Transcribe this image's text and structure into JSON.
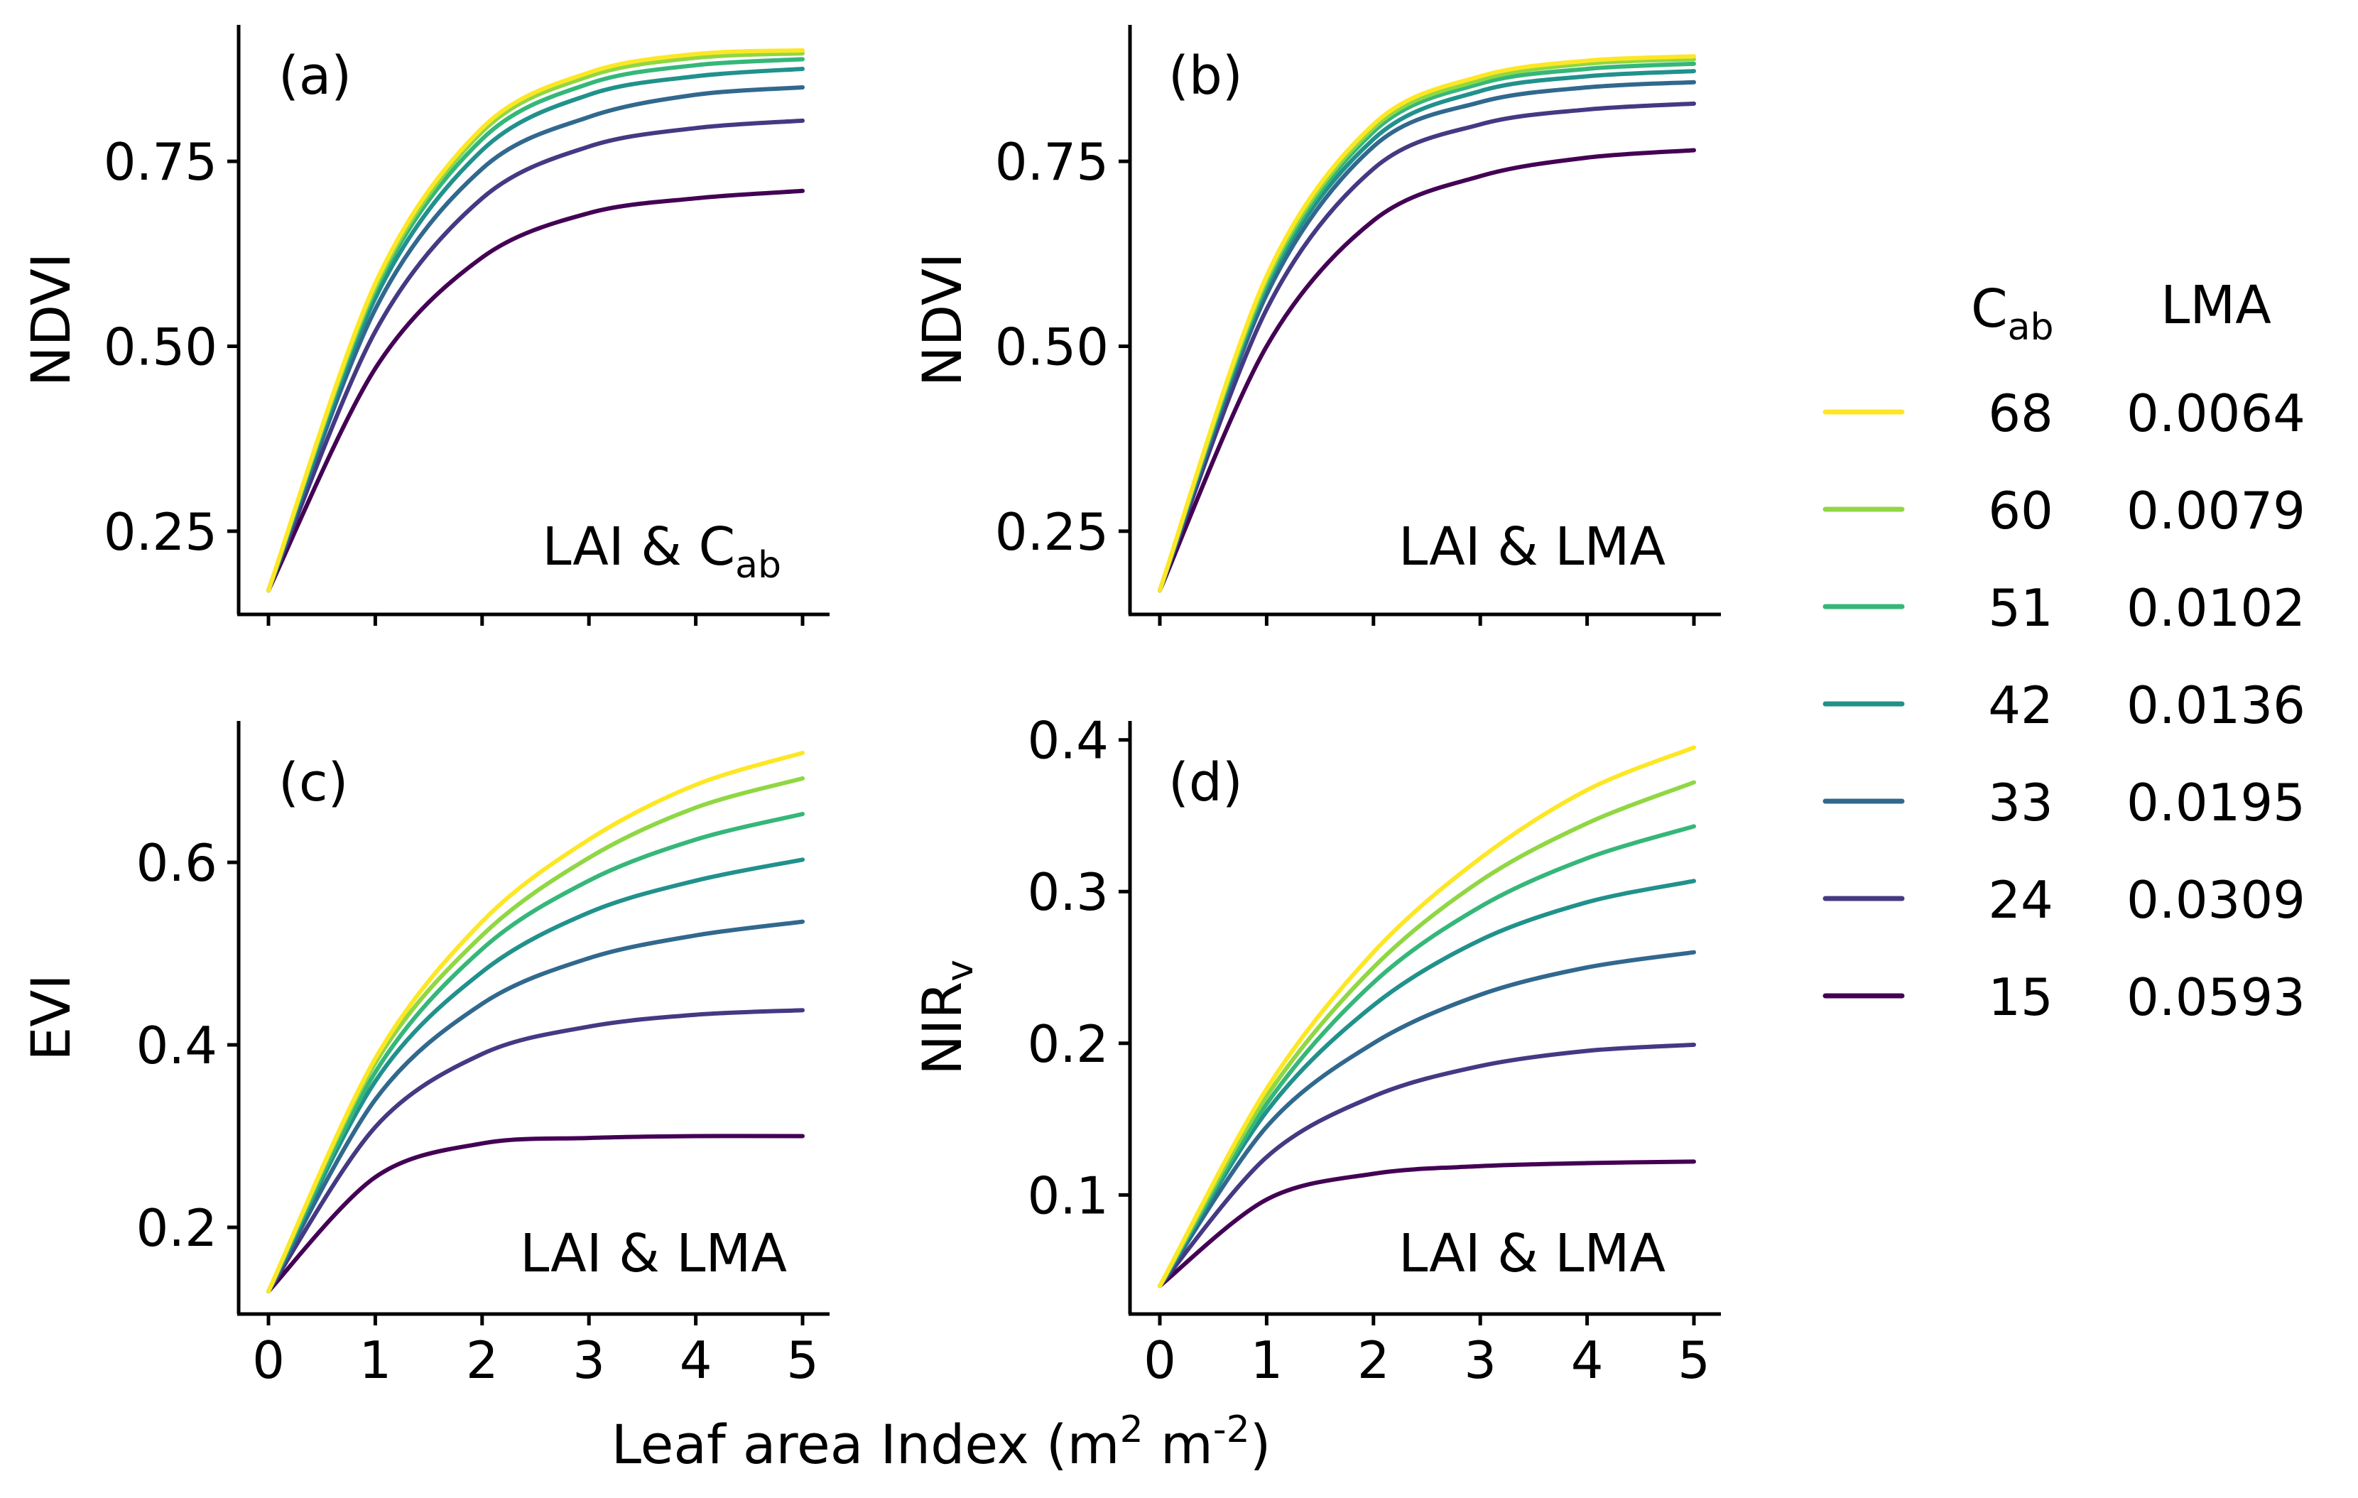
{
  "figure": {
    "xlabel_main": "Leaf area Index (m",
    "xlabel_sup1": "2",
    "xlabel_mid": " m",
    "xlabel_sup2": "-2",
    "xlabel_end": ")"
  },
  "legend": {
    "col1_main": "C",
    "col1_sub": "ab",
    "col2": "LMA"
  },
  "chart_data": [
    {
      "type": "line",
      "panel": "(a)",
      "annotation": "LAI & C",
      "annotation_sub": "ab",
      "ylabel": "NDVI",
      "ylabel_sub": "",
      "xlim": [
        0,
        5
      ],
      "ylim": [
        0.1375,
        0.9345
      ],
      "yticks": [
        0.25,
        0.5,
        0.75
      ],
      "ytick_labels": [
        "0.25",
        "0.50",
        "0.75"
      ],
      "xticks": [
        0,
        1,
        2,
        3,
        4,
        5
      ],
      "xtick_labels": [],
      "series": [
        {
          "name": "15",
          "lma": "0.0593",
          "color": "#440154",
          "x": [
            0,
            1,
            2,
            3,
            4,
            5
          ],
          "y": [
            0.17,
            0.47,
            0.62,
            0.68,
            0.7,
            0.71
          ]
        },
        {
          "name": "24",
          "lma": "0.0309",
          "color": "#443983",
          "x": [
            0,
            1,
            2,
            3,
            4,
            5
          ],
          "y": [
            0.17,
            0.52,
            0.7,
            0.77,
            0.795,
            0.805
          ]
        },
        {
          "name": "33",
          "lma": "0.0195",
          "color": "#31688e",
          "x": [
            0,
            1,
            2,
            3,
            4,
            5
          ],
          "y": [
            0.17,
            0.55,
            0.74,
            0.81,
            0.84,
            0.85
          ]
        },
        {
          "name": "42",
          "lma": "0.0136",
          "color": "#21918c",
          "x": [
            0,
            1,
            2,
            3,
            4,
            5
          ],
          "y": [
            0.17,
            0.565,
            0.765,
            0.84,
            0.865,
            0.875
          ]
        },
        {
          "name": "51",
          "lma": "0.0102",
          "color": "#35b779",
          "x": [
            0,
            1,
            2,
            3,
            4,
            5
          ],
          "y": [
            0.17,
            0.575,
            0.78,
            0.855,
            0.88,
            0.888
          ]
        },
        {
          "name": "60",
          "lma": "0.0079",
          "color": "#90d743",
          "x": [
            0,
            1,
            2,
            3,
            4,
            5
          ],
          "y": [
            0.17,
            0.58,
            0.79,
            0.865,
            0.89,
            0.896
          ]
        },
        {
          "name": "68",
          "lma": "0.0064",
          "color": "#fde725",
          "x": [
            0,
            1,
            2,
            3,
            4,
            5
          ],
          "y": [
            0.17,
            0.585,
            0.795,
            0.87,
            0.895,
            0.9
          ]
        }
      ]
    },
    {
      "type": "line",
      "panel": "(b)",
      "annotation": "LAI & LMA",
      "annotation_sub": "",
      "ylabel": "NDVI",
      "ylabel_sub": "",
      "xlim": [
        0,
        5
      ],
      "ylim": [
        0.1375,
        0.9345
      ],
      "yticks": [
        0.25,
        0.5,
        0.75
      ],
      "ytick_labels": [
        "0.25",
        "0.50",
        "0.75"
      ],
      "xticks": [
        0,
        1,
        2,
        3,
        4,
        5
      ],
      "xtick_labels": [],
      "series": [
        {
          "name": "15",
          "lma": "0.0593",
          "color": "#440154",
          "x": [
            0,
            1,
            2,
            3,
            4,
            5
          ],
          "y": [
            0.17,
            0.5,
            0.67,
            0.73,
            0.755,
            0.765
          ]
        },
        {
          "name": "24",
          "lma": "0.0309",
          "color": "#443983",
          "x": [
            0,
            1,
            2,
            3,
            4,
            5
          ],
          "y": [
            0.17,
            0.55,
            0.74,
            0.8,
            0.82,
            0.828
          ]
        },
        {
          "name": "33",
          "lma": "0.0195",
          "color": "#31688e",
          "x": [
            0,
            1,
            2,
            3,
            4,
            5
          ],
          "y": [
            0.17,
            0.57,
            0.77,
            0.83,
            0.85,
            0.857
          ]
        },
        {
          "name": "42",
          "lma": "0.0136",
          "color": "#21918c",
          "x": [
            0,
            1,
            2,
            3,
            4,
            5
          ],
          "y": [
            0.17,
            0.58,
            0.78,
            0.845,
            0.865,
            0.872
          ]
        },
        {
          "name": "51",
          "lma": "0.0102",
          "color": "#35b779",
          "x": [
            0,
            1,
            2,
            3,
            4,
            5
          ],
          "y": [
            0.17,
            0.585,
            0.79,
            0.855,
            0.875,
            0.882
          ]
        },
        {
          "name": "60",
          "lma": "0.0079",
          "color": "#90d743",
          "x": [
            0,
            1,
            2,
            3,
            4,
            5
          ],
          "y": [
            0.17,
            0.59,
            0.795,
            0.86,
            0.882,
            0.888
          ]
        },
        {
          "name": "68",
          "lma": "0.0064",
          "color": "#fde725",
          "x": [
            0,
            1,
            2,
            3,
            4,
            5
          ],
          "y": [
            0.17,
            0.595,
            0.8,
            0.865,
            0.886,
            0.892
          ]
        }
      ]
    },
    {
      "type": "line",
      "panel": "(c)",
      "annotation": "LAI & LMA",
      "annotation_sub": "",
      "ylabel": "EVI",
      "ylabel_sub": "",
      "xlim": [
        0,
        5
      ],
      "ylim": [
        0.105,
        0.755
      ],
      "yticks": [
        0.2,
        0.4,
        0.6
      ],
      "ytick_labels": [
        "0.2",
        "0.4",
        "0.6"
      ],
      "xticks": [
        0,
        1,
        2,
        3,
        4,
        5
      ],
      "xtick_labels": [
        "0",
        "1",
        "2",
        "3",
        "4",
        "5"
      ],
      "series": [
        {
          "name": "15",
          "lma": "0.0593",
          "color": "#440154",
          "x": [
            0,
            1,
            2,
            3,
            4,
            5
          ],
          "y": [
            0.13,
            0.255,
            0.292,
            0.298,
            0.3,
            0.3
          ]
        },
        {
          "name": "24",
          "lma": "0.0309",
          "color": "#443983",
          "x": [
            0,
            1,
            2,
            3,
            4,
            5
          ],
          "y": [
            0.13,
            0.31,
            0.39,
            0.42,
            0.433,
            0.438
          ]
        },
        {
          "name": "33",
          "lma": "0.0195",
          "color": "#31688e",
          "x": [
            0,
            1,
            2,
            3,
            4,
            5
          ],
          "y": [
            0.13,
            0.34,
            0.445,
            0.495,
            0.52,
            0.535
          ]
        },
        {
          "name": "42",
          "lma": "0.0136",
          "color": "#21918c",
          "x": [
            0,
            1,
            2,
            3,
            4,
            5
          ],
          "y": [
            0.13,
            0.36,
            0.48,
            0.545,
            0.58,
            0.603
          ]
        },
        {
          "name": "51",
          "lma": "0.0102",
          "color": "#35b779",
          "x": [
            0,
            1,
            2,
            3,
            4,
            5
          ],
          "y": [
            0.13,
            0.37,
            0.505,
            0.58,
            0.625,
            0.653
          ]
        },
        {
          "name": "60",
          "lma": "0.0079",
          "color": "#90d743",
          "x": [
            0,
            1,
            2,
            3,
            4,
            5
          ],
          "y": [
            0.13,
            0.38,
            0.52,
            0.605,
            0.66,
            0.692
          ]
        },
        {
          "name": "68",
          "lma": "0.0064",
          "color": "#fde725",
          "x": [
            0,
            1,
            2,
            3,
            4,
            5
          ],
          "y": [
            0.13,
            0.385,
            0.535,
            0.625,
            0.685,
            0.72
          ]
        }
      ]
    },
    {
      "type": "line",
      "panel": "(d)",
      "annotation": "LAI & LMA",
      "annotation_sub": "",
      "ylabel": "NIR",
      "ylabel_sub": "v",
      "xlim": [
        0,
        5
      ],
      "ylim": [
        0.0215,
        0.4125
      ],
      "yticks": [
        0.1,
        0.2,
        0.3,
        0.4
      ],
      "ytick_labels": [
        "0.1",
        "0.2",
        "0.3",
        "0.4"
      ],
      "xticks": [
        0,
        1,
        2,
        3,
        4,
        5
      ],
      "xtick_labels": [
        "0",
        "1",
        "2",
        "3",
        "4",
        "5"
      ],
      "series": [
        {
          "name": "15",
          "lma": "0.0593",
          "color": "#440154",
          "x": [
            0,
            1,
            2,
            3,
            4,
            5
          ],
          "y": [
            0.04,
            0.097,
            0.114,
            0.119,
            0.121,
            0.122
          ]
        },
        {
          "name": "24",
          "lma": "0.0309",
          "color": "#443983",
          "x": [
            0,
            1,
            2,
            3,
            4,
            5
          ],
          "y": [
            0.04,
            0.125,
            0.165,
            0.185,
            0.195,
            0.199
          ]
        },
        {
          "name": "33",
          "lma": "0.0195",
          "color": "#31688e",
          "x": [
            0,
            1,
            2,
            3,
            4,
            5
          ],
          "y": [
            0.04,
            0.145,
            0.2,
            0.232,
            0.25,
            0.26
          ]
        },
        {
          "name": "42",
          "lma": "0.0136",
          "color": "#21918c",
          "x": [
            0,
            1,
            2,
            3,
            4,
            5
          ],
          "y": [
            0.04,
            0.155,
            0.225,
            0.268,
            0.293,
            0.307
          ]
        },
        {
          "name": "51",
          "lma": "0.0102",
          "color": "#35b779",
          "x": [
            0,
            1,
            2,
            3,
            4,
            5
          ],
          "y": [
            0.04,
            0.16,
            0.24,
            0.29,
            0.322,
            0.343
          ]
        },
        {
          "name": "60",
          "lma": "0.0079",
          "color": "#90d743",
          "x": [
            0,
            1,
            2,
            3,
            4,
            5
          ],
          "y": [
            0.04,
            0.165,
            0.25,
            0.307,
            0.345,
            0.372
          ]
        },
        {
          "name": "68",
          "lma": "0.0064",
          "color": "#fde725",
          "x": [
            0,
            1,
            2,
            3,
            4,
            5
          ],
          "y": [
            0.04,
            0.17,
            0.26,
            0.322,
            0.367,
            0.395
          ]
        }
      ]
    }
  ]
}
